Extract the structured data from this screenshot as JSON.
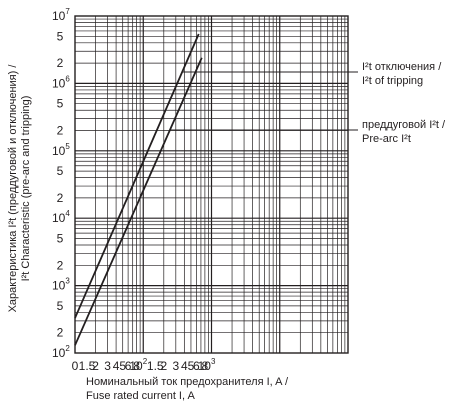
{
  "chart_data": {
    "type": "line",
    "xscale": "log",
    "yscale": "log",
    "xlim": [
      0.1,
      1000
    ],
    "ylim": [
      100,
      10000000
    ],
    "grid": true,
    "ylabel_lines": [
      "Характеристика I²t (преддуговой и отключения) /",
      "I²t Characteristic (pre-arc and tripping)"
    ],
    "xlabel_lines": [
      "Номинальный ток предохранителя I, A /",
      "Fuse rated current I, A"
    ],
    "x_tick_labels": [
      {
        "v": 0.1,
        "t": "0"
      },
      {
        "v": 0.15,
        "t": "1.5"
      },
      {
        "v": 0.2,
        "t": "2"
      },
      {
        "v": 0.3,
        "t": "3"
      },
      {
        "v": 0.4,
        "t": "4"
      },
      {
        "v": 0.5,
        "t": "5"
      },
      {
        "v": 0.6,
        "t": "6"
      },
      {
        "v": 0.8,
        "t": "8"
      },
      {
        "v": 1,
        "t": "10",
        "sup": "2"
      },
      {
        "v": 1.5,
        "t": "1.5"
      },
      {
        "v": 2,
        "t": "2"
      },
      {
        "v": 3,
        "t": "3"
      },
      {
        "v": 4,
        "t": "4"
      },
      {
        "v": 5,
        "t": "5"
      },
      {
        "v": 6,
        "t": "6"
      },
      {
        "v": 8,
        "t": "8"
      },
      {
        "v": 10,
        "t": "10",
        "sup": "3"
      }
    ],
    "y_tick_labels": [
      {
        "v": 100,
        "t": "10",
        "sup": "2"
      },
      {
        "v": 200,
        "t": "2"
      },
      {
        "v": 500,
        "t": "5"
      },
      {
        "v": 1000,
        "t": "10",
        "sup": "3"
      },
      {
        "v": 2000,
        "t": "2"
      },
      {
        "v": 5000,
        "t": "5"
      },
      {
        "v": 10000,
        "t": "10",
        "sup": "4"
      },
      {
        "v": 20000,
        "t": "2"
      },
      {
        "v": 50000,
        "t": "5"
      },
      {
        "v": 100000,
        "t": "10",
        "sup": "5"
      },
      {
        "v": 200000,
        "t": "2"
      },
      {
        "v": 500000,
        "t": "5"
      },
      {
        "v": 1000000,
        "t": "10",
        "sup": "6"
      },
      {
        "v": 2000000,
        "t": "2"
      },
      {
        "v": 5000000,
        "t": "5"
      },
      {
        "v": 10000000,
        "t": "10",
        "sup": "7"
      }
    ],
    "series": [
      {
        "label_lines": [
          "I²t отключения /",
          "I²t of tripping"
        ],
        "x": [
          0.1,
          6.5
        ],
        "y": [
          330,
          5400000
        ]
      },
      {
        "label_lines": [
          "преддуговой I²t /",
          "Pre-arc I²t"
        ],
        "x": [
          0.1,
          7.2
        ],
        "y": [
          130,
          2400000
        ]
      }
    ],
    "line_color": "#231f20",
    "grid_color": "#231f20"
  }
}
